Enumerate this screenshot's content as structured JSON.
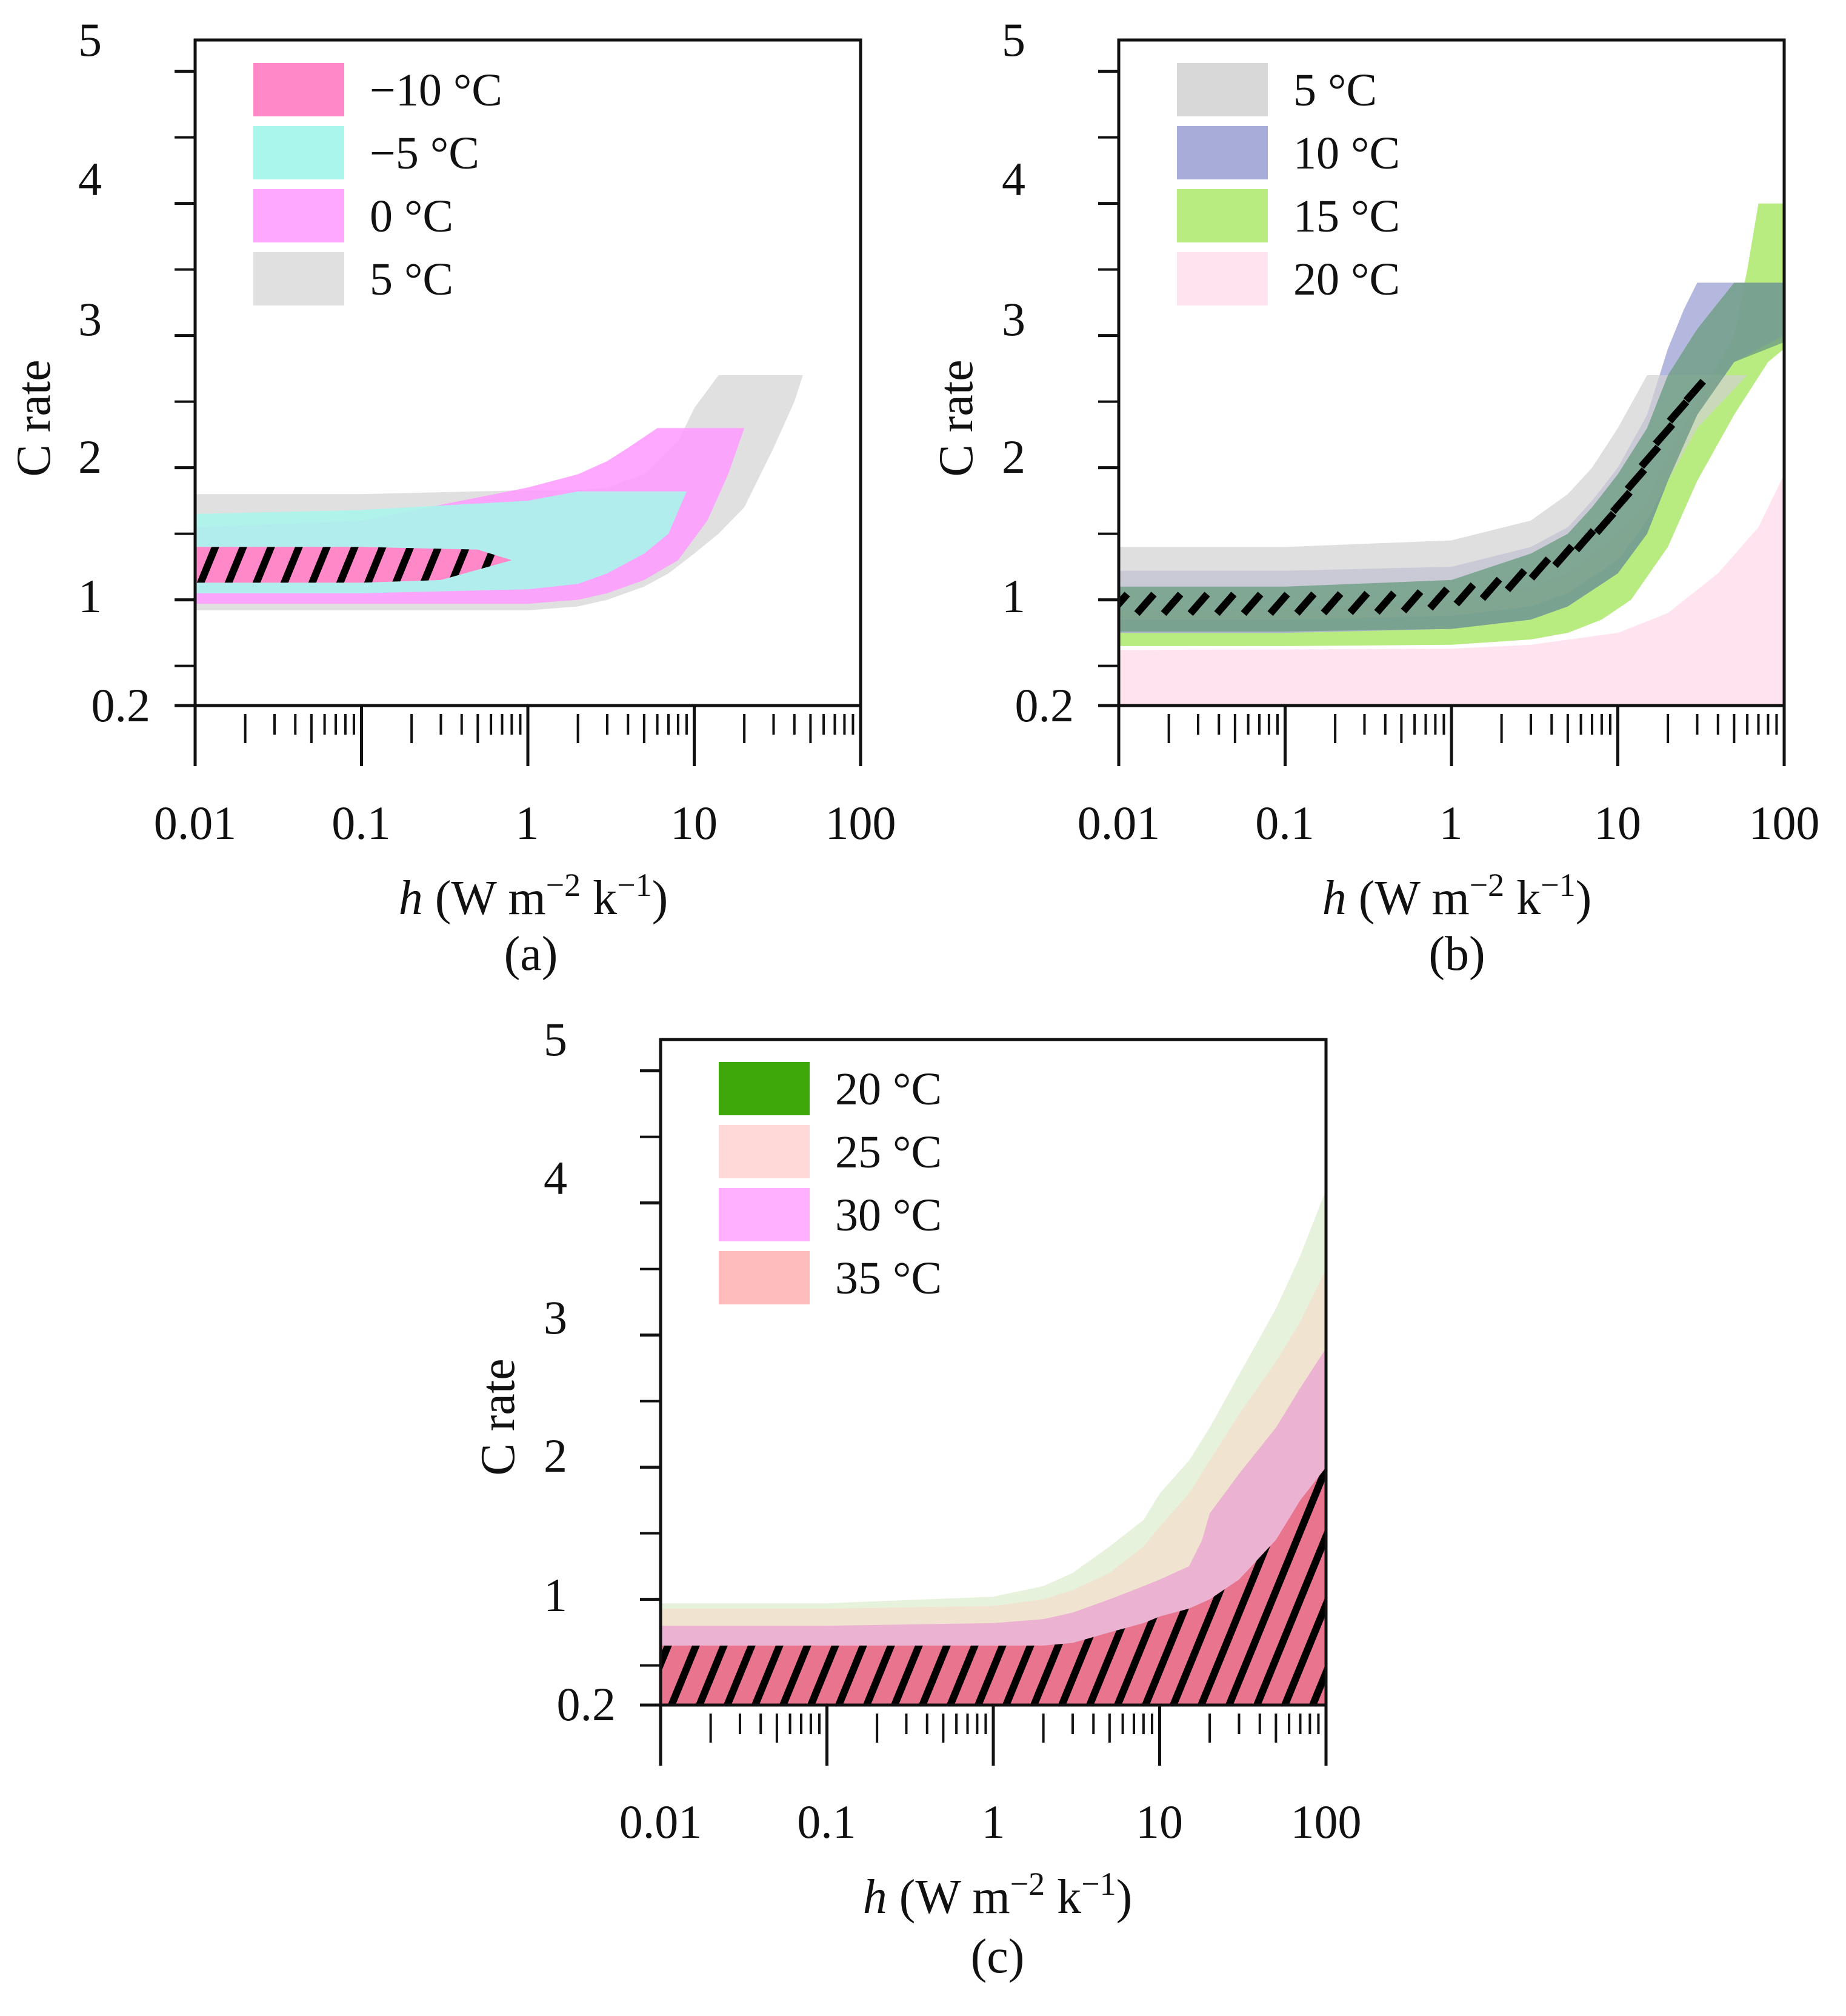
{
  "chart_data": [
    {
      "type": "area",
      "panel_label": "(a)",
      "xlabel": {
        "var": "h",
        "unit_open": " (W m",
        "exp1": "−2",
        "mid": " k",
        "exp2": "−1",
        "unit_close": ")"
      },
      "ylabel": "C rate",
      "x_scale": "log",
      "xlim": [
        0.01,
        100
      ],
      "ylim": [
        0.2,
        5
      ],
      "x_ticks": [
        0.01,
        0.1,
        1,
        10,
        100
      ],
      "x_tick_labels": [
        "0.01",
        "0.1",
        "1",
        "10",
        "100"
      ],
      "y_ticks": [
        0.2,
        1,
        2,
        3,
        4,
        5
      ],
      "y_tick_labels": [
        "0.2",
        "1",
        "2",
        "3",
        "4",
        "5"
      ],
      "legend_position": "top-left",
      "series": [
        {
          "name": "5 °C",
          "color": "#e0e0e0",
          "opacity": 1,
          "x": [
            0.01,
            0.1,
            1,
            2,
            3,
            5,
            7,
            10,
            14,
            20,
            30,
            40,
            45,
            30,
            20,
            14,
            10,
            8,
            5,
            3,
            2,
            1,
            0.1,
            0.01
          ],
          "y": [
            0.92,
            0.92,
            0.92,
            0.95,
            1.0,
            1.1,
            1.2,
            1.35,
            1.5,
            1.7,
            2.15,
            2.5,
            2.7,
            2.7,
            2.7,
            2.7,
            2.45,
            2.2,
            1.95,
            1.85,
            1.83,
            1.83,
            1.8,
            1.8
          ]
        },
        {
          "name": "0 °C",
          "color": "#ff99ff",
          "opacity": 0.85,
          "x": [
            0.01,
            0.1,
            1,
            2,
            3,
            5,
            8,
            12,
            16,
            20,
            15,
            10,
            6,
            4,
            3,
            2,
            1,
            0.1,
            0.01
          ],
          "y": [
            0.97,
            0.97,
            0.97,
            1.0,
            1.05,
            1.15,
            1.3,
            1.6,
            1.95,
            2.3,
            2.3,
            2.3,
            2.3,
            2.15,
            2.05,
            1.95,
            1.85,
            1.6,
            1.55
          ]
        },
        {
          "name": "−5 °C",
          "color": "#aaf5ec",
          "opacity": 0.9,
          "x": [
            0.01,
            0.1,
            1,
            2,
            3,
            5,
            7,
            9,
            7,
            5,
            3,
            2,
            1,
            0.1,
            0.01
          ],
          "y": [
            1.05,
            1.05,
            1.08,
            1.12,
            1.2,
            1.35,
            1.5,
            1.82,
            1.82,
            1.82,
            1.82,
            1.82,
            1.75,
            1.68,
            1.65
          ]
        },
        {
          "name": "−10 °C",
          "color": "#ff88c8",
          "opacity": 1,
          "x": [
            0.01,
            0.1,
            0.3,
            0.8,
            0.5,
            0.1,
            0.01
          ],
          "y": [
            1.13,
            1.13,
            1.15,
            1.3,
            1.38,
            1.4,
            1.4
          ]
        }
      ],
      "hatched_series": "−10 °C"
    },
    {
      "type": "area",
      "panel_label": "(b)",
      "xlabel": {
        "var": "h",
        "unit_open": " (W m",
        "exp1": "−2",
        "mid": " k",
        "exp2": "−1",
        "unit_close": ")"
      },
      "ylabel": "C rate",
      "x_scale": "log",
      "xlim": [
        0.01,
        100
      ],
      "ylim": [
        0.2,
        5
      ],
      "x_ticks": [
        0.01,
        0.1,
        1,
        10,
        100
      ],
      "x_tick_labels": [
        "0.01",
        "0.1",
        "1",
        "10",
        "100"
      ],
      "y_ticks": [
        0.2,
        1,
        2,
        3,
        4,
        5
      ],
      "y_tick_labels": [
        "0.2",
        "1",
        "2",
        "3",
        "4",
        "5"
      ],
      "legend_position": "top-left",
      "series": [
        {
          "name": "20 °C",
          "color": "#ffe4f0",
          "opacity": 1,
          "x": [
            0.01,
            1,
            3,
            10,
            20,
            40,
            70,
            100,
            100,
            0.01
          ],
          "y": [
            0.62,
            0.63,
            0.66,
            0.75,
            0.9,
            1.2,
            1.55,
            1.95,
            0.2,
            0.2
          ]
        },
        {
          "name": "15 °C",
          "color": "#b8ec80",
          "opacity": 1,
          "x": [
            0.01,
            0.1,
            1,
            3,
            5,
            8,
            12,
            20,
            30,
            50,
            80,
            100,
            100,
            70,
            60,
            50,
            30,
            20,
            15,
            10,
            7,
            5,
            3,
            1,
            0.1,
            0.01
          ],
          "y": [
            0.65,
            0.65,
            0.66,
            0.7,
            0.75,
            0.85,
            1.0,
            1.4,
            1.9,
            2.4,
            2.8,
            2.9,
            4.0,
            4.0,
            3.5,
            3.0,
            2.5,
            2.1,
            1.75,
            1.5,
            1.35,
            1.2,
            1.1,
            1.0,
            0.93,
            0.92
          ]
        },
        {
          "name": "10 °C",
          "color": "#a8acd8",
          "opacity": 0.85,
          "x": [
            0.01,
            0.1,
            1,
            3,
            5,
            10,
            15,
            20,
            30,
            50,
            100,
            100,
            30,
            25,
            20,
            15,
            10,
            7,
            5,
            3,
            1,
            0.1,
            0.01
          ],
          "y": [
            0.75,
            0.75,
            0.78,
            0.85,
            0.95,
            1.2,
            1.5,
            1.9,
            2.4,
            2.8,
            3.0,
            3.4,
            3.4,
            3.2,
            2.9,
            2.4,
            2.0,
            1.75,
            1.55,
            1.4,
            1.25,
            1.22,
            1.22
          ]
        },
        {
          "name": "5 °C",
          "color": "#d2d2d2",
          "opacity": 0.7,
          "x": [
            0.01,
            0.1,
            1,
            3,
            5,
            10,
            15,
            20,
            30,
            60,
            30,
            20,
            15,
            10,
            7,
            5,
            3,
            1,
            0.1,
            0.01
          ],
          "y": [
            0.85,
            0.85,
            0.88,
            0.95,
            1.05,
            1.3,
            1.6,
            1.9,
            2.3,
            2.7,
            2.7,
            2.7,
            2.7,
            2.3,
            2.0,
            1.8,
            1.6,
            1.45,
            1.4,
            1.4
          ]
        }
      ],
      "overlap_color": "#6e9e82",
      "hatched_centerline": {
        "x": [
          0.01,
          0.1,
          0.5,
          1,
          2,
          3,
          5,
          8,
          10,
          12,
          15,
          20,
          25,
          30,
          38
        ],
        "y": [
          0.97,
          0.97,
          0.98,
          1.02,
          1.1,
          1.2,
          1.35,
          1.55,
          1.7,
          1.85,
          2.05,
          2.3,
          2.5,
          2.6,
          2.7
        ]
      }
    },
    {
      "type": "area",
      "panel_label": "(c)",
      "xlabel": {
        "var": "h",
        "unit_open": " (W m",
        "exp1": "−2",
        "mid": " k",
        "exp2": "−1",
        "unit_close": ")"
      },
      "ylabel": "C rate",
      "x_scale": "log",
      "xlim": [
        0.01,
        100
      ],
      "ylim": [
        0.2,
        5
      ],
      "x_ticks": [
        0.01,
        0.1,
        1,
        10,
        100
      ],
      "x_tick_labels": [
        "0.01",
        "0.1",
        "1",
        "10",
        "100"
      ],
      "y_ticks": [
        0.2,
        1,
        2,
        3,
        4,
        5
      ],
      "y_tick_labels": [
        "0.2",
        "1",
        "2",
        "3",
        "4",
        "5"
      ],
      "legend_position": "top-left",
      "legend_entries": [
        {
          "name": "20 °C",
          "color": "#3ea80a"
        },
        {
          "name": "25 °C",
          "color": "#ffd8d8"
        },
        {
          "name": "30 °C",
          "color": "#ffb0ff"
        },
        {
          "name": "35 °C",
          "color": "#ffbcbc"
        }
      ],
      "series": [
        {
          "name": "20 °C",
          "color": "#e6f2dc",
          "opacity": 1,
          "x": [
            0.01,
            0.1,
            1,
            2,
            3,
            5,
            8,
            10,
            15,
            20,
            30,
            50,
            70,
            100,
            100,
            0.01
          ],
          "y": [
            0.97,
            0.97,
            1.02,
            1.1,
            1.2,
            1.4,
            1.6,
            1.8,
            2.05,
            2.3,
            2.7,
            3.2,
            3.6,
            4.1,
            0.2,
            0.2
          ]
        },
        {
          "name": "25 °C",
          "color": "#f0e4d0",
          "opacity": 1,
          "x": [
            0.01,
            0.1,
            1,
            2,
            3,
            5,
            8,
            10,
            15,
            20,
            30,
            50,
            70,
            100,
            100,
            0.01
          ],
          "y": [
            0.93,
            0.93,
            0.95,
            1.0,
            1.07,
            1.2,
            1.4,
            1.55,
            1.8,
            2.05,
            2.4,
            2.8,
            3.1,
            3.5,
            0.2,
            0.2
          ]
        },
        {
          "name": "30 °C",
          "color": "#ecb2d2",
          "opacity": 1,
          "x": [
            0.01,
            0.1,
            1,
            2,
            3,
            5,
            8,
            10,
            15,
            18,
            20,
            30,
            50,
            70,
            100,
            100,
            0.01
          ],
          "y": [
            0.8,
            0.8,
            0.82,
            0.85,
            0.9,
            1.0,
            1.1,
            1.15,
            1.25,
            1.45,
            1.65,
            1.95,
            2.3,
            2.6,
            2.9,
            0.2,
            0.2
          ]
        },
        {
          "name": "35 °C",
          "color": "#e8748e",
          "opacity": 1,
          "x": [
            0.01,
            0.1,
            1,
            2,
            3,
            5,
            8,
            10,
            15,
            20,
            30,
            50,
            70,
            100,
            100,
            0.01
          ],
          "y": [
            0.65,
            0.65,
            0.65,
            0.65,
            0.67,
            0.75,
            0.82,
            0.87,
            0.93,
            1.0,
            1.15,
            1.45,
            1.75,
            2.0,
            0.2,
            0.2
          ]
        }
      ],
      "hatched_series": "35 °C"
    }
  ]
}
